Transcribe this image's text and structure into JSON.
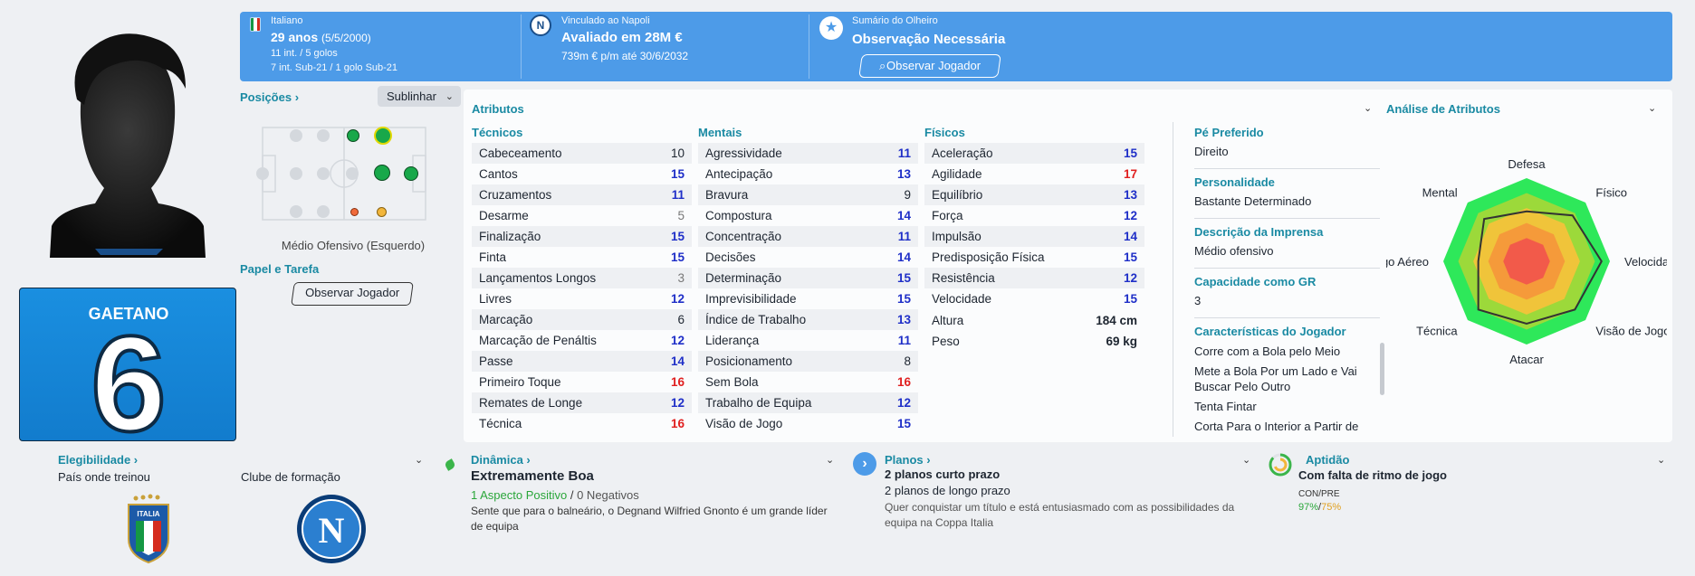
{
  "header": {
    "nationality": "Italiano",
    "age": "29 anos",
    "dob": "(5/5/2000)",
    "caps": "11 int. / 5 golos",
    "u21": "7 int. Sub-21 / 1 golo Sub-21",
    "club_contract": "Vinculado ao Napoli",
    "value": "Avaliado em 28M €",
    "wage": "739m € p/m até 30/6/2032",
    "club_badge_letter": "N",
    "scout_summary_label": "Sumário do Olheiro",
    "scout_summary": "Observação Necessária",
    "scout_button": "Observar Jogador"
  },
  "shirt": {
    "name": "GAETANO",
    "number": "6"
  },
  "positions": {
    "title": "Posições ›",
    "highlight_label": "Sublinhar",
    "role_text": "Médio Ofensivo (Esquerdo)",
    "role_task_title": "Papel e Tarefa",
    "scout_button": "Observar Jogador"
  },
  "attributes": {
    "title": "Atributos",
    "technical_title": "Técnicos",
    "mental_title": "Mentais",
    "physical_title": "Físicos",
    "technical": [
      {
        "name": "Cabeceamento",
        "value": "10",
        "tier": "mid"
      },
      {
        "name": "Cantos",
        "value": "15",
        "tier": "hi"
      },
      {
        "name": "Cruzamentos",
        "value": "11",
        "tier": "hi"
      },
      {
        "name": "Desarme",
        "value": "5",
        "tier": "lo"
      },
      {
        "name": "Finalização",
        "value": "15",
        "tier": "hi"
      },
      {
        "name": "Finta",
        "value": "15",
        "tier": "hi"
      },
      {
        "name": "Lançamentos Longos",
        "value": "3",
        "tier": "lo"
      },
      {
        "name": "Livres",
        "value": "12",
        "tier": "hi"
      },
      {
        "name": "Marcação",
        "value": "6",
        "tier": "mid"
      },
      {
        "name": "Marcação de Penáltis",
        "value": "12",
        "tier": "hi"
      },
      {
        "name": "Passe",
        "value": "14",
        "tier": "hi"
      },
      {
        "name": "Primeiro Toque",
        "value": "16",
        "tier": "vhi"
      },
      {
        "name": "Remates de Longe",
        "value": "12",
        "tier": "hi"
      },
      {
        "name": "Técnica",
        "value": "16",
        "tier": "vhi"
      }
    ],
    "mental": [
      {
        "name": "Agressividade",
        "value": "11",
        "tier": "hi"
      },
      {
        "name": "Antecipação",
        "value": "13",
        "tier": "hi"
      },
      {
        "name": "Bravura",
        "value": "9",
        "tier": "mid"
      },
      {
        "name": "Compostura",
        "value": "14",
        "tier": "hi"
      },
      {
        "name": "Concentração",
        "value": "11",
        "tier": "hi"
      },
      {
        "name": "Decisões",
        "value": "14",
        "tier": "hi"
      },
      {
        "name": "Determinação",
        "value": "15",
        "tier": "hi"
      },
      {
        "name": "Imprevisibilidade",
        "value": "15",
        "tier": "hi"
      },
      {
        "name": "Índice de Trabalho",
        "value": "13",
        "tier": "hi"
      },
      {
        "name": "Liderança",
        "value": "11",
        "tier": "hi"
      },
      {
        "name": "Posicionamento",
        "value": "8",
        "tier": "mid"
      },
      {
        "name": "Sem Bola",
        "value": "16",
        "tier": "vhi"
      },
      {
        "name": "Trabalho de Equipa",
        "value": "12",
        "tier": "hi"
      },
      {
        "name": "Visão de Jogo",
        "value": "15",
        "tier": "hi"
      }
    ],
    "physical": [
      {
        "name": "Aceleração",
        "value": "15",
        "tier": "hi"
      },
      {
        "name": "Agilidade",
        "value": "17",
        "tier": "vhi"
      },
      {
        "name": "Equilíbrio",
        "value": "13",
        "tier": "hi"
      },
      {
        "name": "Força",
        "value": "12",
        "tier": "hi"
      },
      {
        "name": "Impulsão",
        "value": "14",
        "tier": "hi"
      },
      {
        "name": "Predisposição Física",
        "value": "15",
        "tier": "hi"
      },
      {
        "name": "Resistência",
        "value": "12",
        "tier": "hi"
      },
      {
        "name": "Velocidade",
        "value": "15",
        "tier": "hi"
      }
    ],
    "height_label": "Altura",
    "height": "184 cm",
    "weight_label": "Peso",
    "weight": "69 kg"
  },
  "profile": {
    "foot_label": "Pé Preferido",
    "foot": "Direito",
    "personality_label": "Personalidade",
    "personality": "Bastante Determinado",
    "press_label": "Descrição da Imprensa",
    "press": "Médio ofensivo",
    "gk_label": "Capacidade como GR",
    "gk": "3",
    "traits_label": "Características do Jogador",
    "traits": [
      "Corre com a Bola pelo Meio",
      "Mete a Bola Por um Lado e Vai Buscar Pelo Outro",
      "Tenta Fintar",
      "Corta Para o Interior a Partir de"
    ]
  },
  "analysis": {
    "title": "Análise de Atributos",
    "labels": [
      "Defesa",
      "Físico",
      "Velocidade",
      "Visão de Jogo",
      "Atacar",
      "Técnica",
      "Jogo Aéreo",
      "Mental"
    ],
    "values": [
      0.6,
      0.78,
      0.9,
      0.82,
      0.75,
      0.82,
      0.58,
      0.72
    ]
  },
  "eligibility": {
    "title": "Elegibilidade ›",
    "trained_country_label": "País onde treinou",
    "youth_club_label": "Clube de formação",
    "italia_text": "ITALIA"
  },
  "dynamics": {
    "title": "Dinâmica ›",
    "value": "Extremamente Boa",
    "positive": "1 Aspecto Positivo",
    "negative": "0 Negativos",
    "desc": "Sente que para o balneário, o Degnand Wilfried Gnonto é um grande líder de equipa"
  },
  "plans": {
    "title": "Planos ›",
    "short": "2 planos curto prazo",
    "long": "2 planos de longo prazo",
    "desc": "Quer conquistar um título e está entusiasmado com as possibilidades da equipa na Coppa Italia"
  },
  "fitness": {
    "title": "Aptidão",
    "value": "Com falta de ritmo de jogo",
    "con_pre_label": "CON/PRE",
    "con": "97%",
    "sep": "/",
    "pre": "75%"
  }
}
